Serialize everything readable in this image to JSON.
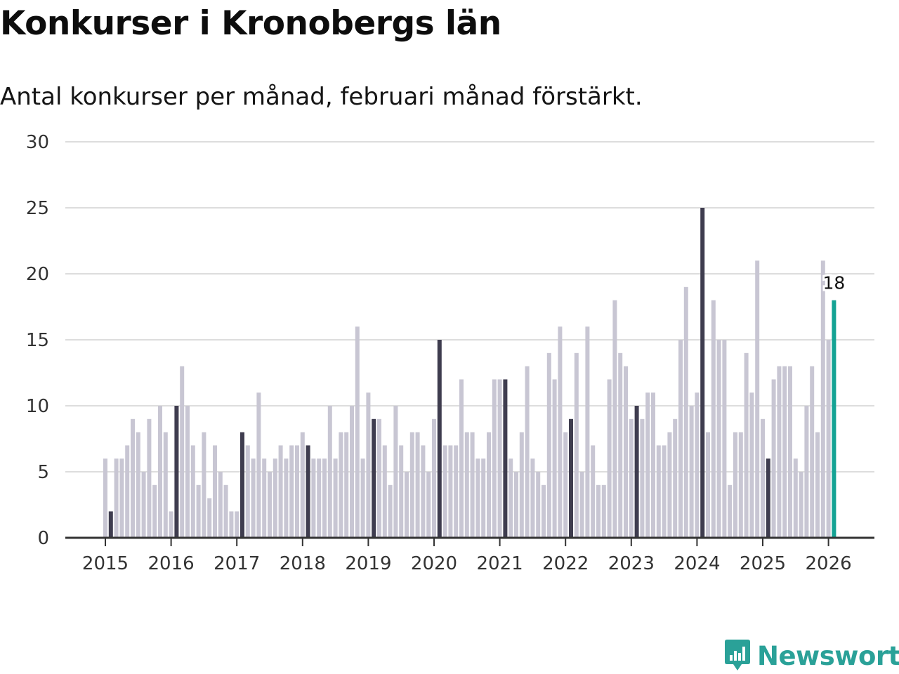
{
  "colors": {
    "bar_default": "#c8c6d3",
    "bar_february": "#3f3d4f",
    "bar_latest": "#14a394",
    "grid": "#dddddd",
    "axis": "#333333",
    "brand": "#2aa198"
  },
  "brand": {
    "name": "Newsworthy",
    "icon": "newsworthy-logo-icon"
  },
  "chart_data": {
    "type": "bar",
    "title": "Konkurser i Kronobergs län",
    "subtitle": "Antal konkurser per månad, februari månad förstärkt.",
    "xlabel": "",
    "ylabel": "",
    "ylim": [
      0,
      30
    ],
    "yticks": [
      0,
      5,
      10,
      15,
      20,
      25,
      30
    ],
    "grid": true,
    "highlight": "February of each year (dark bars), latest month in teal",
    "start": "2015-01",
    "year_labels": [
      "2015",
      "2016",
      "2017",
      "2018",
      "2019",
      "2020",
      "2021",
      "2022",
      "2023",
      "2024",
      "2025",
      "2026"
    ],
    "values": [
      6,
      2,
      6,
      6,
      7,
      9,
      8,
      5,
      9,
      4,
      10,
      8,
      2,
      10,
      13,
      10,
      7,
      4,
      8,
      3,
      7,
      5,
      4,
      2,
      2,
      8,
      7,
      6,
      11,
      6,
      5,
      6,
      7,
      6,
      7,
      7,
      8,
      7,
      6,
      6,
      6,
      10,
      6,
      8,
      8,
      10,
      16,
      6,
      11,
      9,
      9,
      7,
      4,
      10,
      7,
      5,
      8,
      8,
      7,
      5,
      9,
      15,
      7,
      7,
      7,
      12,
      8,
      8,
      6,
      6,
      8,
      12,
      12,
      12,
      6,
      5,
      8,
      13,
      6,
      5,
      4,
      14,
      12,
      16,
      8,
      9,
      14,
      5,
      16,
      7,
      4,
      4,
      12,
      18,
      14,
      13,
      9,
      10,
      9,
      11,
      11,
      7,
      7,
      8,
      9,
      15,
      19,
      10,
      11,
      25,
      8,
      18,
      15,
      15,
      4,
      8,
      8,
      14,
      11,
      21,
      9,
      6,
      12,
      13,
      13,
      13,
      6,
      5,
      10,
      13,
      8,
      21,
      15,
      18
    ],
    "latest_label": "18"
  }
}
